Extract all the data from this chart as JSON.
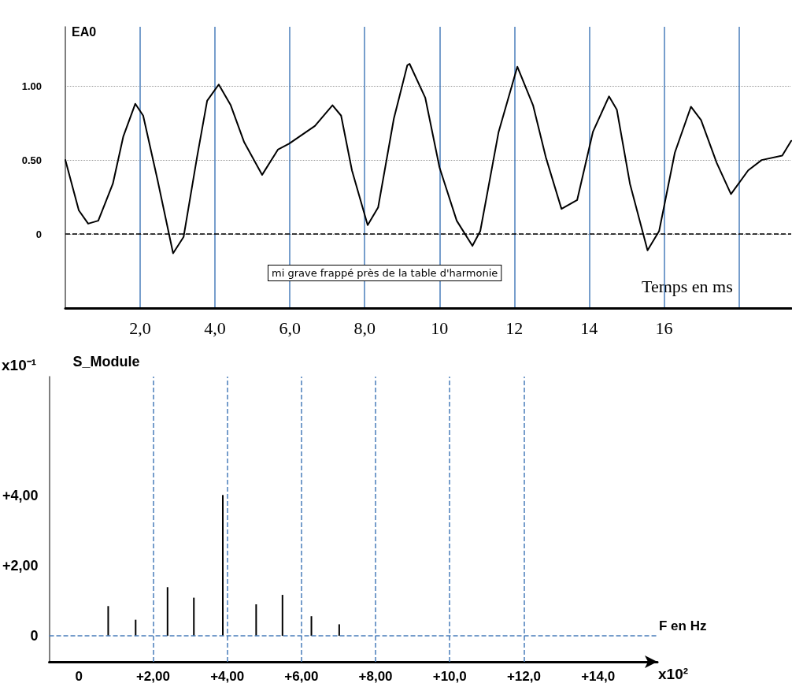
{
  "chart_data": [
    {
      "type": "line",
      "ylabel": "EA0",
      "xlabel": "Temps en ms",
      "annotations": [
        "mi grave frappé près de la table d'harmonie"
      ],
      "color": "#000000",
      "marker": "none",
      "line_style": "solid",
      "x": [
        0,
        0.36,
        0.61,
        0.88,
        1.27,
        1.55,
        1.87,
        2.08,
        2.46,
        2.88,
        3.16,
        3.52,
        3.79,
        4.1,
        4.42,
        4.78,
        5.26,
        5.68,
        5.98,
        6.67,
        7.14,
        7.37,
        7.66,
        8.08,
        8.36,
        8.78,
        9.14,
        9.2,
        9.62,
        10,
        10.46,
        10.88,
        11.09,
        11.58,
        12.08,
        12.5,
        12.84,
        13.26,
        13.68,
        14.1,
        14.53,
        14.74,
        15.09,
        15.56,
        15.87,
        16.29,
        16.72,
        16.99,
        17.41,
        17.79,
        18.25,
        18.61,
        19.16,
        19.4
      ],
      "values": [
        0.5,
        0.16,
        0.07,
        0.09,
        0.34,
        0.66,
        0.88,
        0.8,
        0.37,
        -0.13,
        -0.02,
        0.52,
        0.9,
        1.01,
        0.87,
        0.62,
        0.4,
        0.57,
        0.61,
        0.73,
        0.87,
        0.8,
        0.43,
        0.06,
        0.18,
        0.78,
        1.14,
        1.15,
        0.92,
        0.45,
        0.09,
        -0.08,
        0.02,
        0.69,
        1.13,
        0.87,
        0.52,
        0.17,
        0.23,
        0.69,
        0.93,
        0.84,
        0.34,
        -0.11,
        0.02,
        0.55,
        0.86,
        0.77,
        0.48,
        0.27,
        0.43,
        0.5,
        0.53,
        0.63
      ],
      "xlim": [
        0,
        19.4
      ],
      "ylim": [
        -0.5,
        1.4
      ],
      "xticks": [
        {
          "value": 2,
          "label": "2,0"
        },
        {
          "value": 4,
          "label": "4,0"
        },
        {
          "value": 6,
          "label": "6,0"
        },
        {
          "value": 8,
          "label": "8,0"
        },
        10,
        12,
        14,
        16,
        {
          "value": 18,
          "label": null
        }
      ],
      "yticks": [
        0,
        {
          "value": 0.5,
          "label": "0.50"
        },
        {
          "value": 1,
          "label": "1.00"
        }
      ],
      "grid": true,
      "ref_lines": [
        {
          "axis": "y",
          "value": 0,
          "color": "#000000",
          "line_style": "dashed"
        }
      ]
    },
    {
      "type": "bar",
      "ylabel": "S_Module",
      "xlabel": "F en Hz",
      "annotations": [
        "x10⁻¹",
        "x10²"
      ],
      "color": "#000000",
      "x": [
        0.79,
        1.53,
        2.39,
        3.1,
        3.88,
        4.78,
        5.49,
        6.27,
        7.02
      ],
      "values": [
        0.85,
        0.46,
        1.39,
        1.09,
        4.02,
        0.9,
        1.17,
        0.56,
        0.33
      ],
      "xlim": [
        -0.8,
        15.6
      ],
      "ylim": [
        -0.74,
        7.4
      ],
      "xticks": [
        0,
        {
          "value": 2,
          "label": "+2,00"
        },
        {
          "value": 4,
          "label": "+4,00"
        },
        {
          "value": 6,
          "label": "+6,00"
        },
        {
          "value": 8,
          "label": "+8,00"
        },
        {
          "value": 10,
          "label": "+10,0"
        },
        {
          "value": 12,
          "label": "+12,0"
        },
        {
          "value": 14,
          "label": "+14,0"
        }
      ],
      "yticks": [
        0,
        {
          "value": 2,
          "label": "+2,00"
        },
        {
          "value": 4,
          "label": "+4,00"
        }
      ],
      "grid": false,
      "ref_lines": [
        {
          "axis": "x",
          "value": 2,
          "color": "#4a7ebb",
          "line_style": "dashed"
        },
        {
          "axis": "x",
          "value": 4,
          "color": "#4a7ebb",
          "line_style": "dashed"
        },
        {
          "axis": "x",
          "value": 6,
          "color": "#4a7ebb",
          "line_style": "dashed"
        },
        {
          "axis": "x",
          "value": 8,
          "color": "#4a7ebb",
          "line_style": "dashed"
        },
        {
          "axis": "x",
          "value": 10,
          "color": "#4a7ebb",
          "line_style": "dashed"
        },
        {
          "axis": "x",
          "value": 12,
          "color": "#4a7ebb",
          "line_style": "dashed"
        },
        {
          "axis": "y",
          "value": 0,
          "color": "#4a7ebb",
          "line_style": "dashed"
        }
      ]
    }
  ]
}
